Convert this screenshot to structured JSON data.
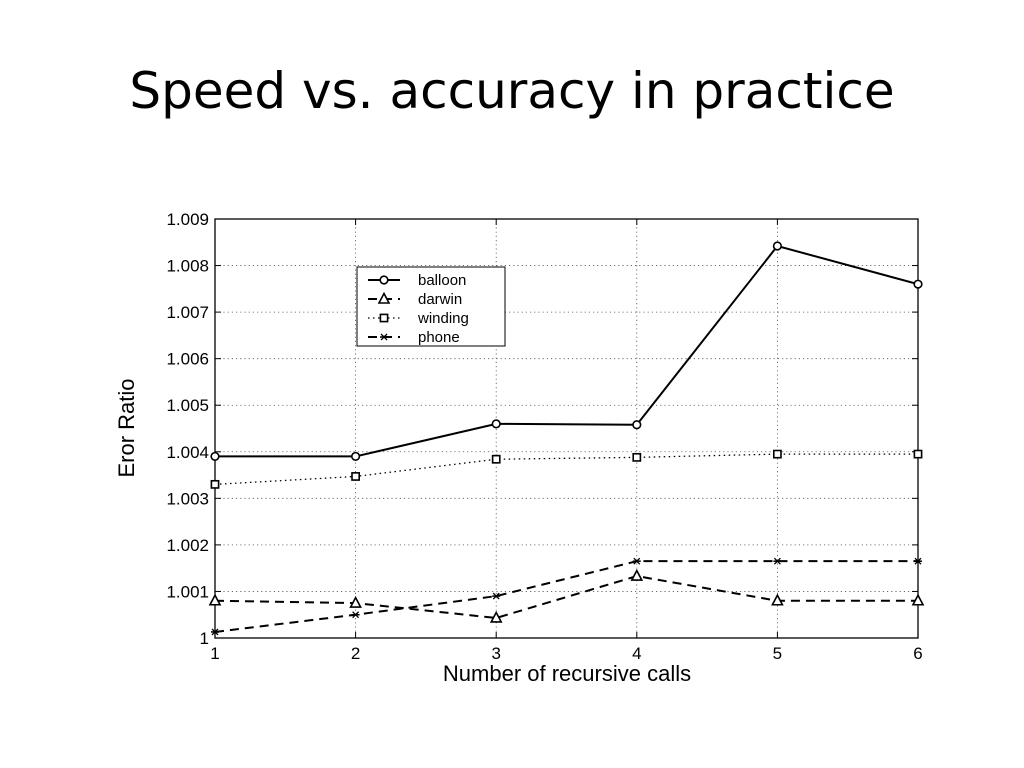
{
  "slide": {
    "title": "Speed vs. accuracy in practice"
  },
  "chart_data": {
    "type": "line",
    "title": "",
    "xlabel": "Number of recursive calls",
    "ylabel": "Eror Ratio",
    "x": [
      1,
      2,
      3,
      4,
      5,
      6
    ],
    "xlim": [
      1,
      6
    ],
    "ylim": [
      1.0,
      1.009
    ],
    "x_ticks": [
      "1",
      "2",
      "3",
      "4",
      "5",
      "6"
    ],
    "y_ticks": [
      "1",
      "1.001",
      "1.002",
      "1.003",
      "1.004",
      "1.005",
      "1.006",
      "1.007",
      "1.008",
      "1.009"
    ],
    "grid": true,
    "legend_position": "top-left",
    "series": [
      {
        "name": "balloon",
        "style": "solid",
        "marker": "circle",
        "color": "#000000",
        "values": [
          1.0039,
          1.0039,
          1.0046,
          1.00458,
          1.00842,
          1.0076
        ]
      },
      {
        "name": "darwin",
        "style": "dashed",
        "marker": "triangle",
        "color": "#000000",
        "values": [
          1.0008,
          1.00075,
          1.00043,
          1.00133,
          1.0008,
          1.0008
        ]
      },
      {
        "name": "winding",
        "style": "dotted",
        "marker": "square",
        "color": "#000000",
        "values": [
          1.0033,
          1.00347,
          1.00384,
          1.00388,
          1.00395,
          1.00395
        ]
      },
      {
        "name": "phone",
        "style": "dashed",
        "marker": "star",
        "color": "#000000",
        "values": [
          1.00013,
          1.0005,
          1.0009,
          1.00165,
          1.00165,
          1.00165
        ]
      }
    ]
  }
}
